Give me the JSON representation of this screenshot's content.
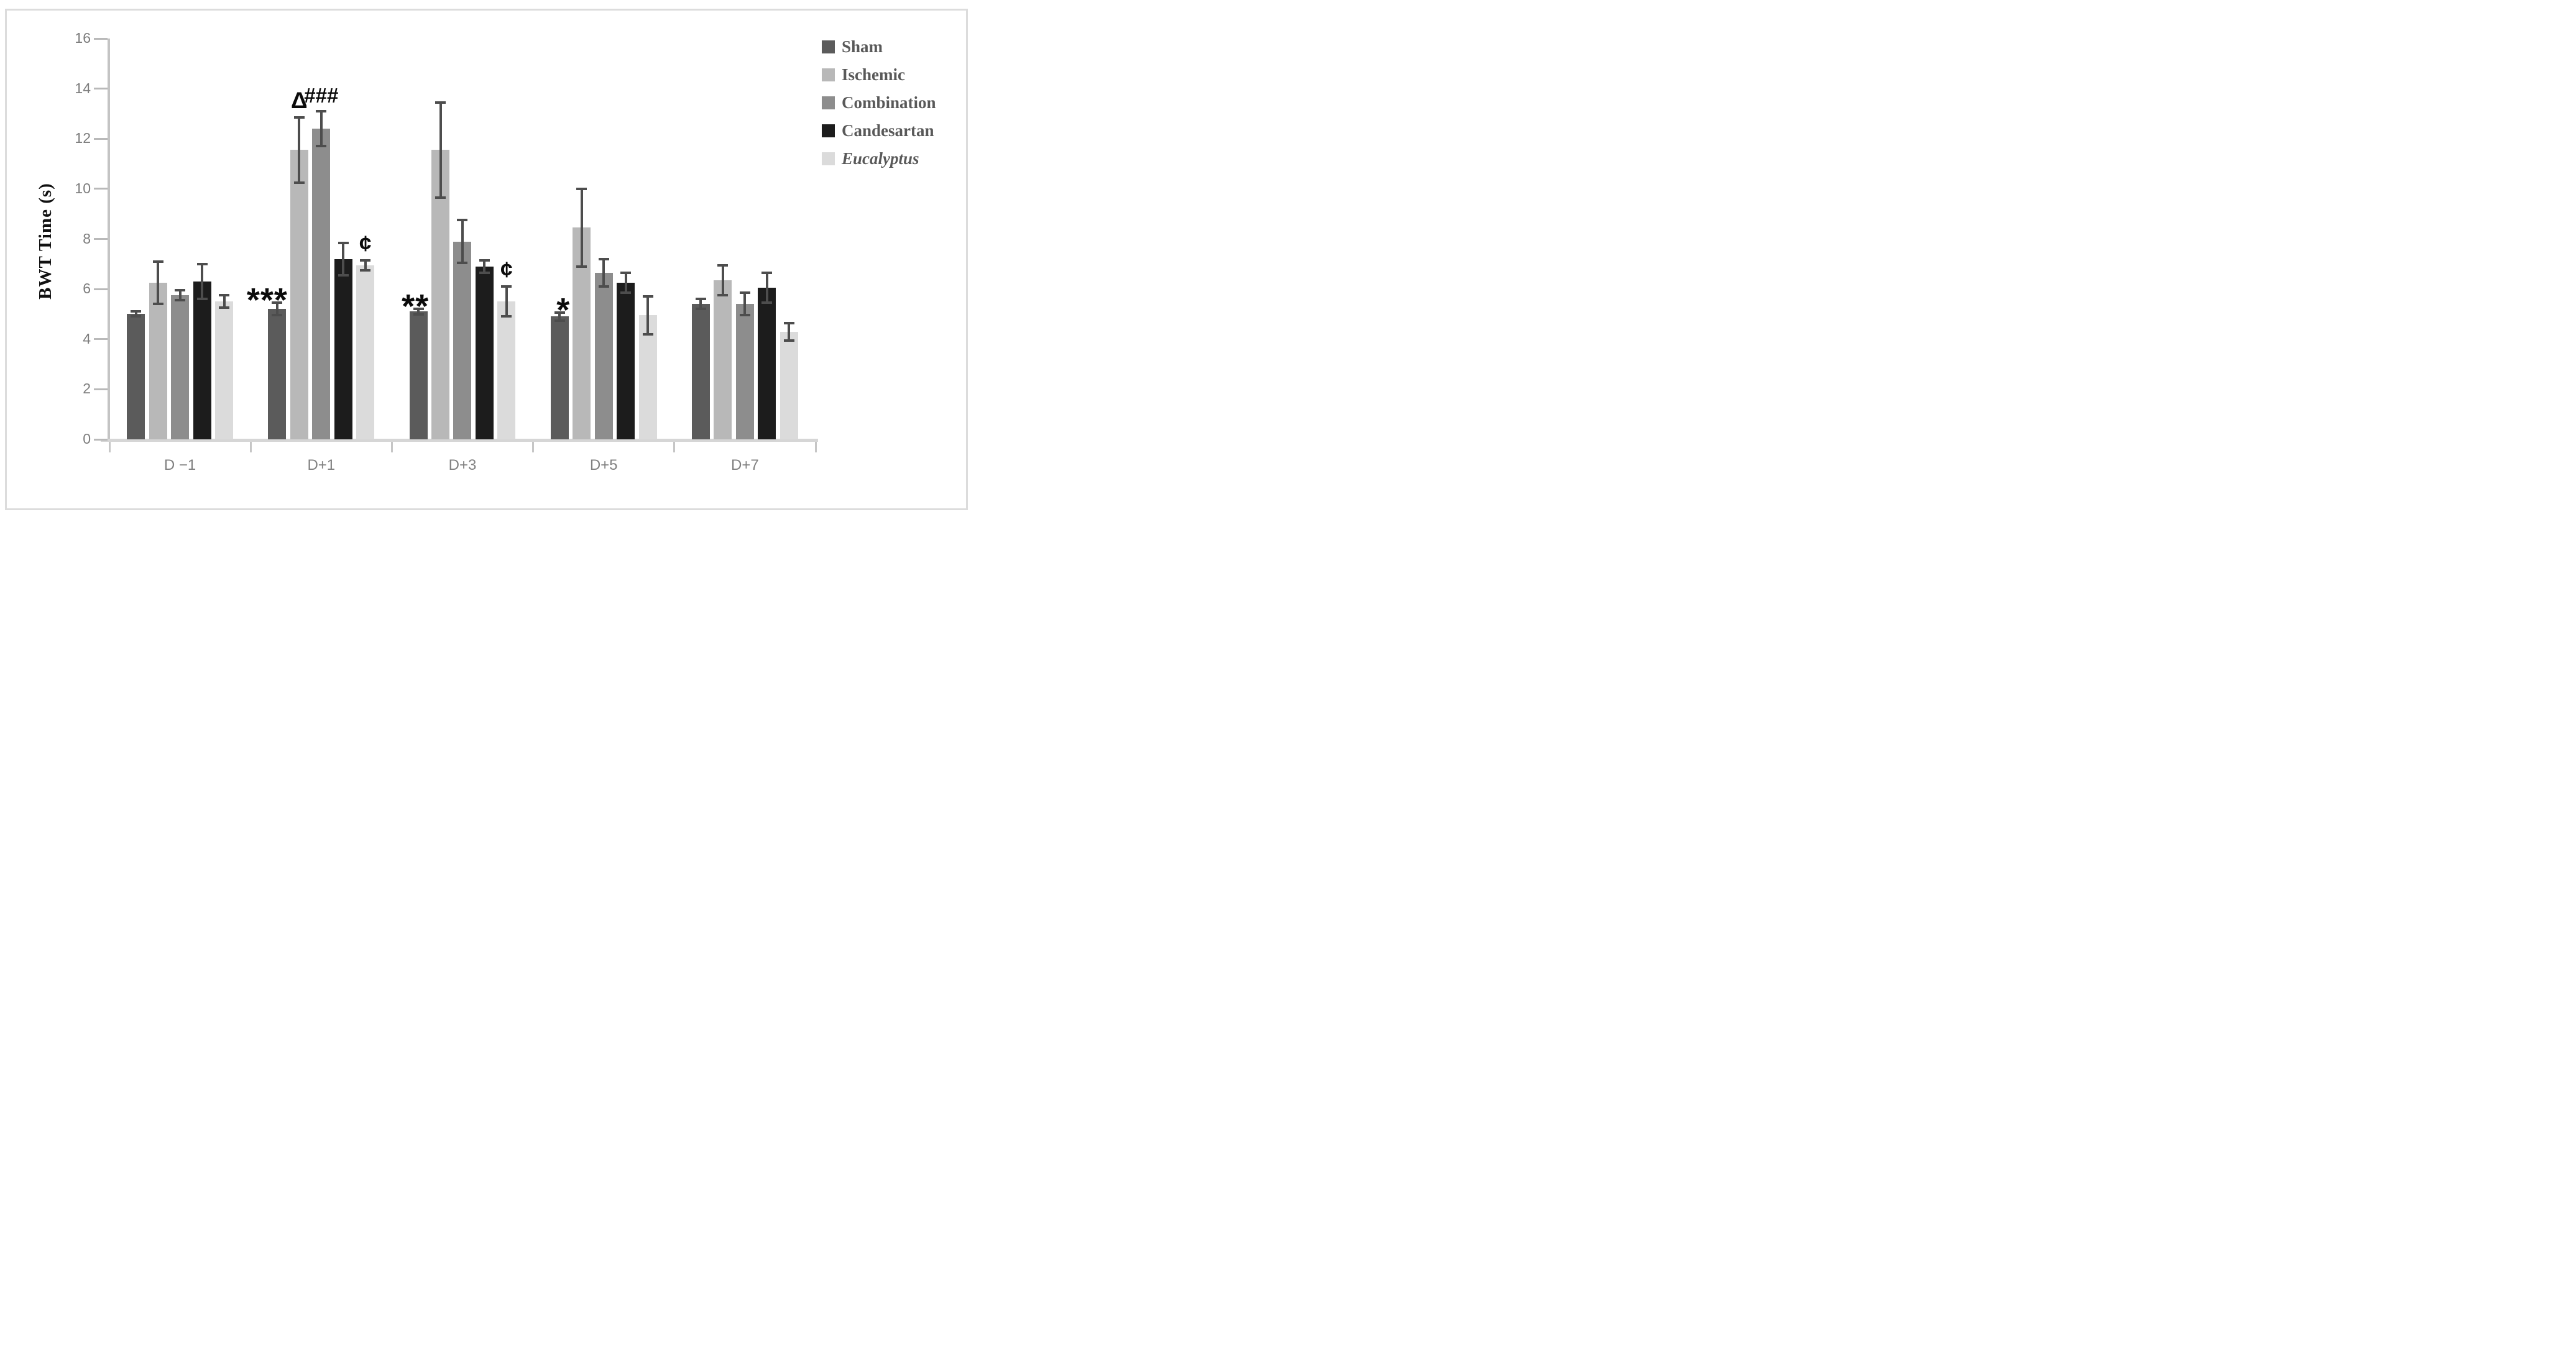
{
  "figure": {
    "background": "#ffffff",
    "border_color": "#dcdcdc"
  },
  "chart_data": {
    "type": "bar",
    "title": "",
    "xlabel": "",
    "ylabel": "BWT Time (s)",
    "ylim": [
      0,
      16
    ],
    "yticks": [
      "0",
      "2",
      "4",
      "6",
      "8",
      "10",
      "12",
      "14",
      "16"
    ],
    "grid": false,
    "legend_position": "right",
    "categories": [
      "D −1",
      "D+1",
      "D+3",
      "D+5",
      "D+7"
    ],
    "series": [
      {
        "name": "Sham",
        "color": "#5b5b5b",
        "italic": false,
        "values": [
          5.0,
          5.2,
          5.1,
          4.9,
          5.4
        ],
        "errors": [
          0.1,
          0.25,
          0.12,
          0.15,
          0.2
        ]
      },
      {
        "name": "Ischemic",
        "color": "#b8b8b8",
        "italic": false,
        "values": [
          6.25,
          11.55,
          11.55,
          8.45,
          6.35
        ],
        "errors": [
          0.85,
          1.3,
          1.9,
          1.55,
          0.6
        ]
      },
      {
        "name": "Combination",
        "color": "#8d8d8d",
        "italic": false,
        "values": [
          5.75,
          12.4,
          7.9,
          6.65,
          5.4
        ],
        "errors": [
          0.2,
          0.7,
          0.85,
          0.55,
          0.45
        ]
      },
      {
        "name": "Candesartan",
        "color": "#1c1c1c",
        "italic": false,
        "values": [
          6.3,
          7.2,
          6.9,
          6.25,
          6.05
        ],
        "errors": [
          0.7,
          0.65,
          0.25,
          0.4,
          0.6
        ]
      },
      {
        "name": "Eucalyptus",
        "color": "#dbdbdb",
        "italic": true,
        "values": [
          5.5,
          6.95,
          5.5,
          4.95,
          4.3
        ],
        "errors": [
          0.25,
          0.2,
          0.6,
          0.75,
          0.35
        ]
      }
    ],
    "annotations": [
      {
        "symbol": "***",
        "category": "D+1",
        "series": "Sham",
        "placement": "left-above"
      },
      {
        "symbol": "Δ",
        "category": "D+1",
        "series": "Ischemic",
        "placement": "above"
      },
      {
        "symbol": "###",
        "category": "D+1",
        "series": "Combination",
        "placement": "above"
      },
      {
        "symbol": "¢",
        "category": "D+1",
        "series": "Eucalyptus",
        "placement": "above"
      },
      {
        "symbol": "**",
        "category": "D+3",
        "series": "Sham",
        "placement": "left-above"
      },
      {
        "symbol": "¢",
        "category": "D+3",
        "series": "Eucalyptus",
        "placement": "above"
      },
      {
        "symbol": "*",
        "category": "D+5",
        "series": "Sham",
        "placement": "left-above"
      }
    ],
    "error_bar_color": "#4d4d4d",
    "axis_color": "#c4c4c4",
    "tick_color": "#b9b9b9",
    "tick_label_color": "#7d7d7d",
    "legend_text_color": "#595959"
  }
}
